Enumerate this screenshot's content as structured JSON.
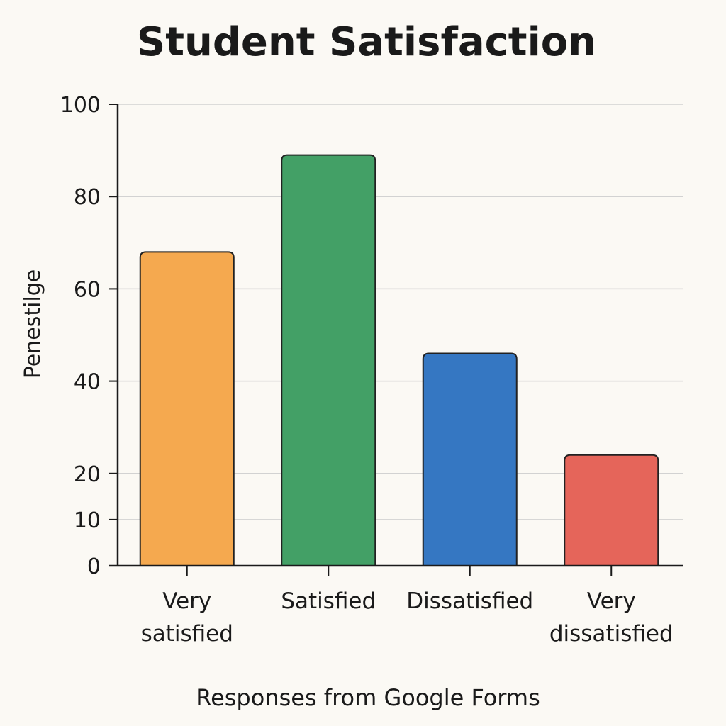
{
  "chart_data": {
    "type": "bar",
    "title": "Student Satisfaction",
    "xlabel": "Responses from Google Forms",
    "ylabel": "Penestilge",
    "categories": [
      [
        "Very",
        "satisfied"
      ],
      [
        "Satisfied"
      ],
      [
        "Dissatisfied"
      ],
      [
        "Very",
        "dissatisfied"
      ]
    ],
    "values": [
      68,
      89,
      46,
      24
    ],
    "colors": [
      "#f5a94f",
      "#43a066",
      "#3577c2",
      "#e5655a"
    ],
    "yticks": [
      0,
      10,
      20,
      40,
      60,
      80,
      100
    ],
    "ylim": [
      0,
      100
    ],
    "grid": true
  }
}
